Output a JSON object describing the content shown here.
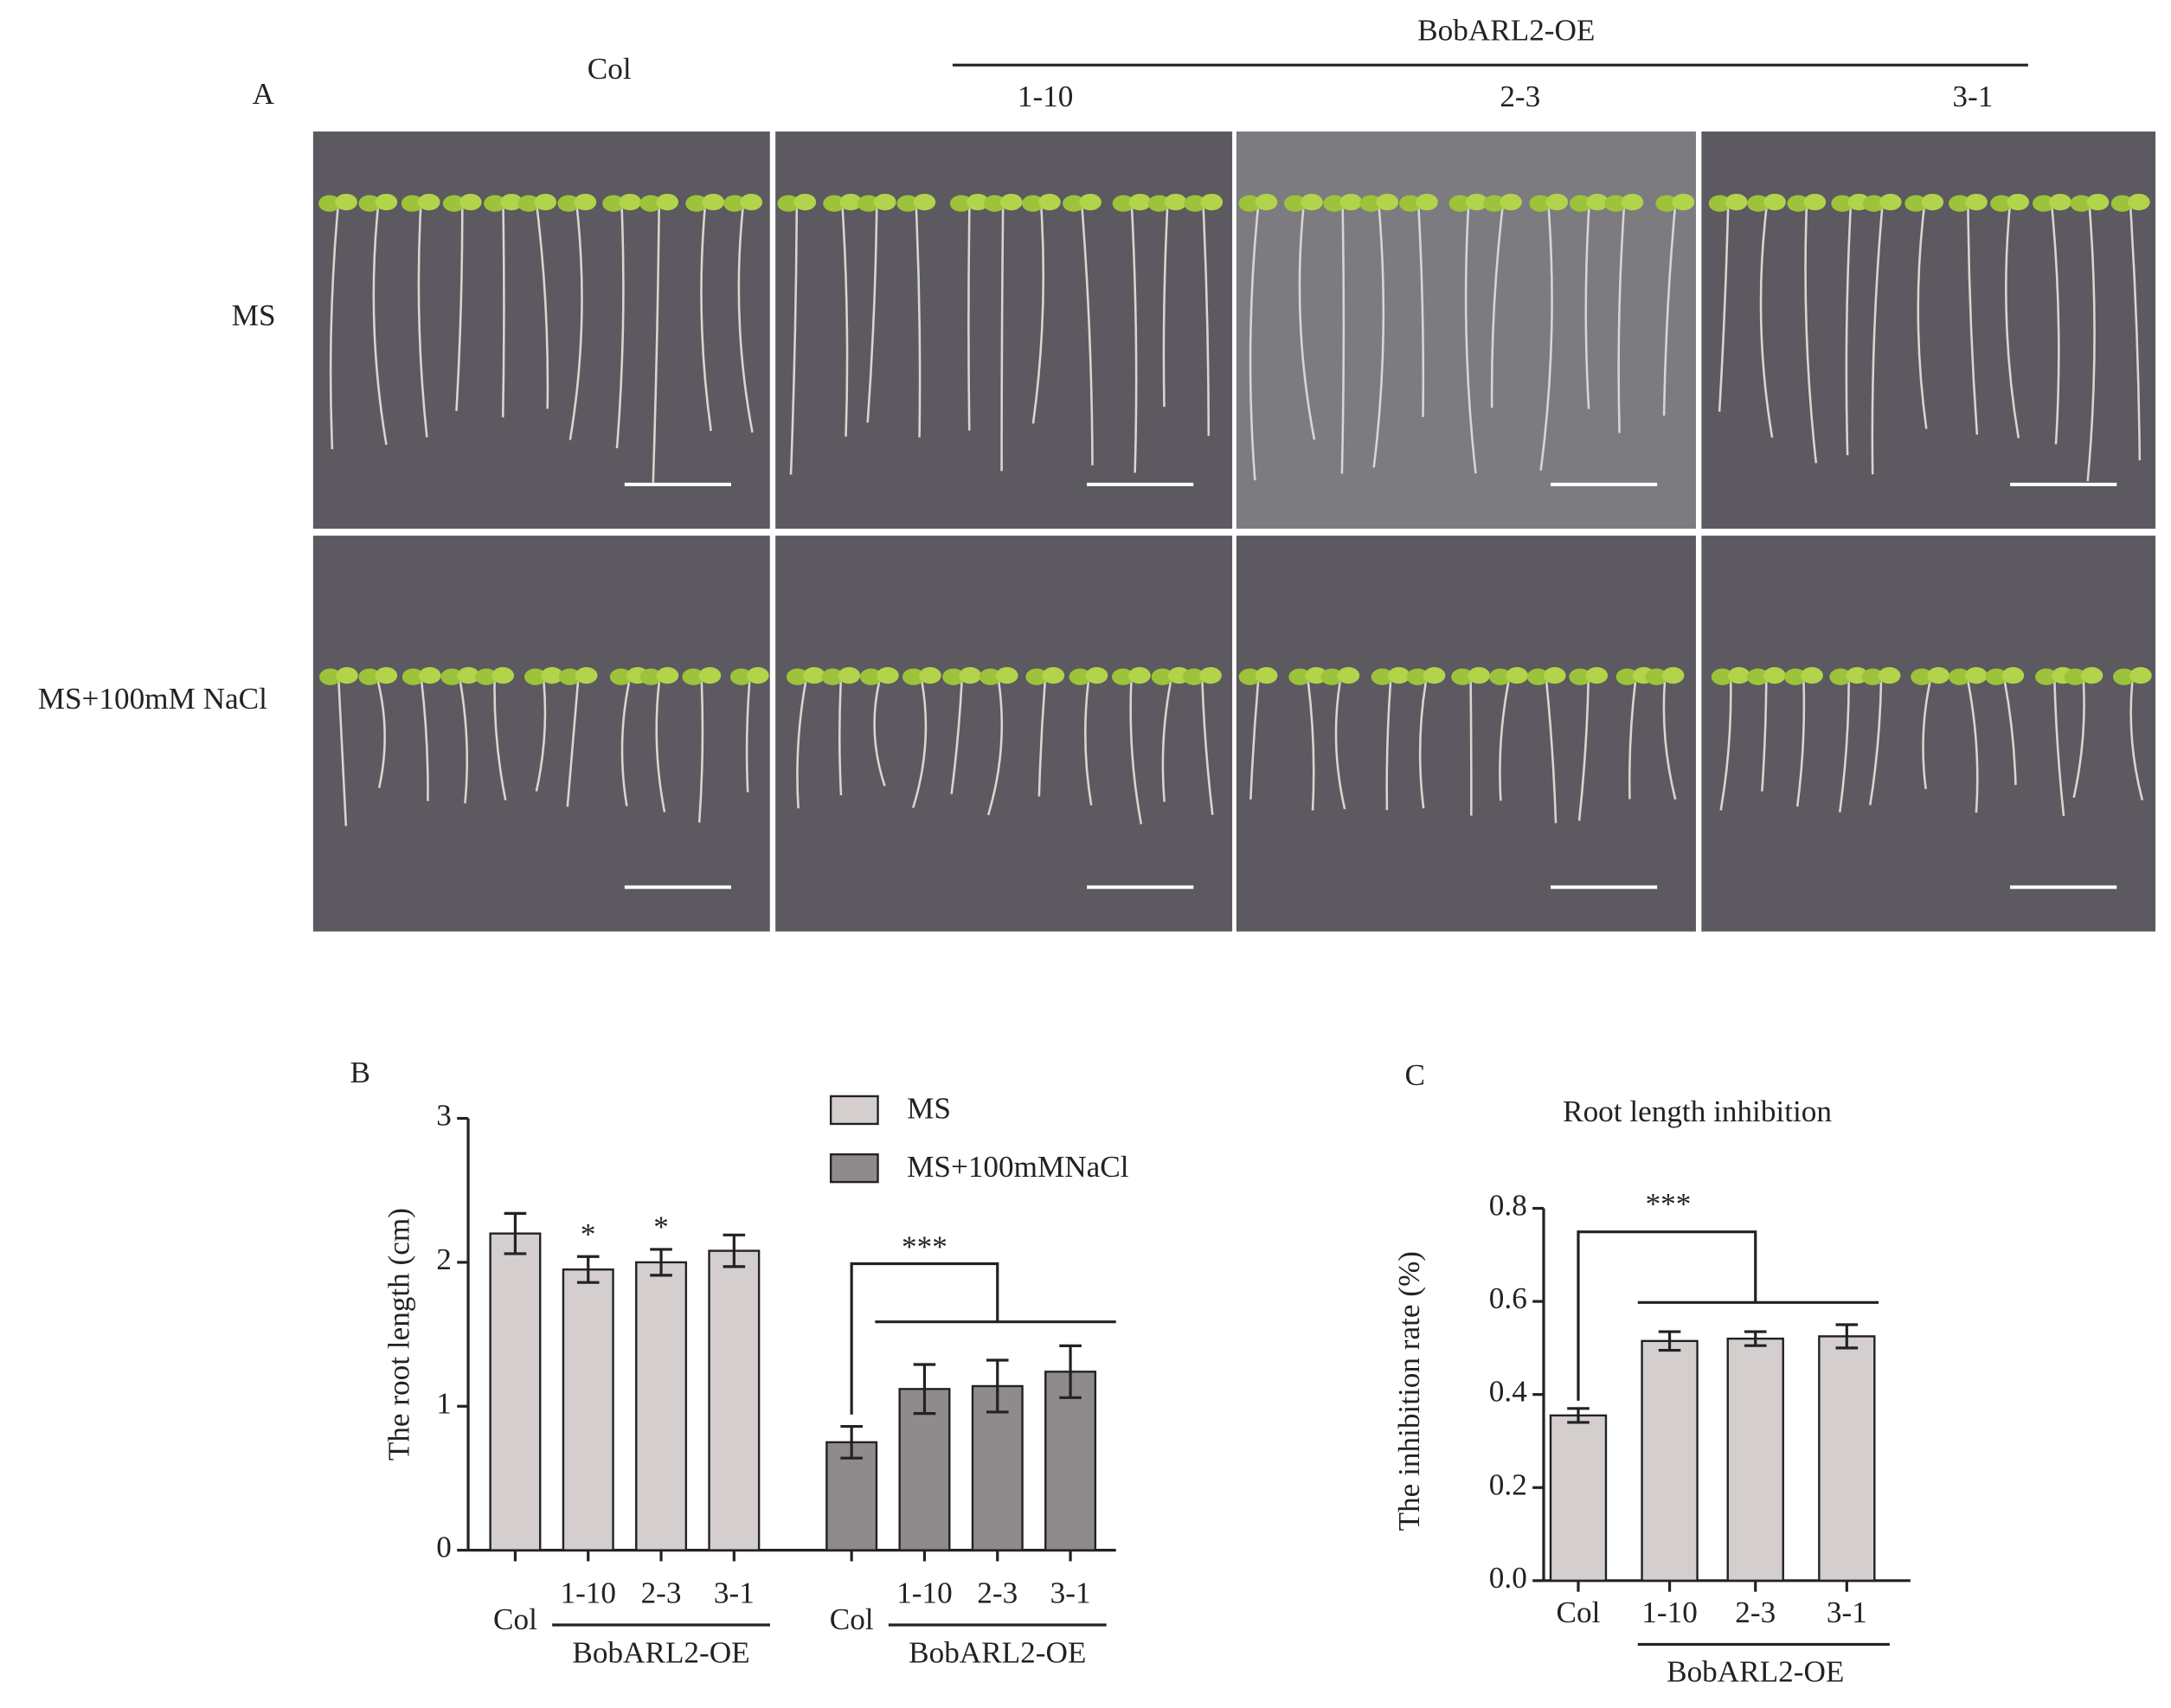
{
  "panel_a": {
    "label": "A",
    "group": "BobARL2-OE",
    "columns": [
      "Col",
      "1-10",
      "2-3",
      "3-1"
    ],
    "rows": [
      "MS",
      "MS+100mM NaCl"
    ]
  },
  "chart_data": [
    {
      "type": "bar",
      "label": "B",
      "ylabel": "The root length (cm)",
      "ylim": [
        0,
        3
      ],
      "yticks": [
        0,
        1,
        2,
        3
      ],
      "categories": [
        "Col",
        "1-10",
        "2-3",
        "3-1"
      ],
      "group_name": "BobARL2-OE",
      "series": [
        {
          "name": "MS",
          "color": "#d4cfce",
          "values": [
            2.2,
            1.95,
            2.0,
            2.08
          ],
          "errors": [
            0.14,
            0.09,
            0.09,
            0.11
          ],
          "annotations": [
            null,
            "*",
            "*",
            null
          ]
        },
        {
          "name": "MS+100mMNaCl",
          "color": "#8f8a8b",
          "values": [
            0.75,
            1.12,
            1.14,
            1.24
          ],
          "errors": [
            0.11,
            0.17,
            0.18,
            0.18
          ]
        }
      ],
      "significance": "***"
    },
    {
      "type": "bar",
      "label": "C",
      "title": "Root length inhibition",
      "ylabel": "The inhibition rate (%)",
      "ylim": [
        0,
        0.8
      ],
      "yticks": [
        {
          "value": 0,
          "label": "0.0"
        },
        0.2,
        0.4,
        0.6,
        0.8
      ],
      "categories": [
        "Col",
        "1-10",
        "2-3",
        "3-1"
      ],
      "group_name": "BobARL2-OE",
      "color": "#d4cfce",
      "values": [
        0.355,
        0.515,
        0.52,
        0.525
      ],
      "errors": [
        0.015,
        0.02,
        0.015,
        0.025
      ],
      "significance": "***"
    }
  ]
}
